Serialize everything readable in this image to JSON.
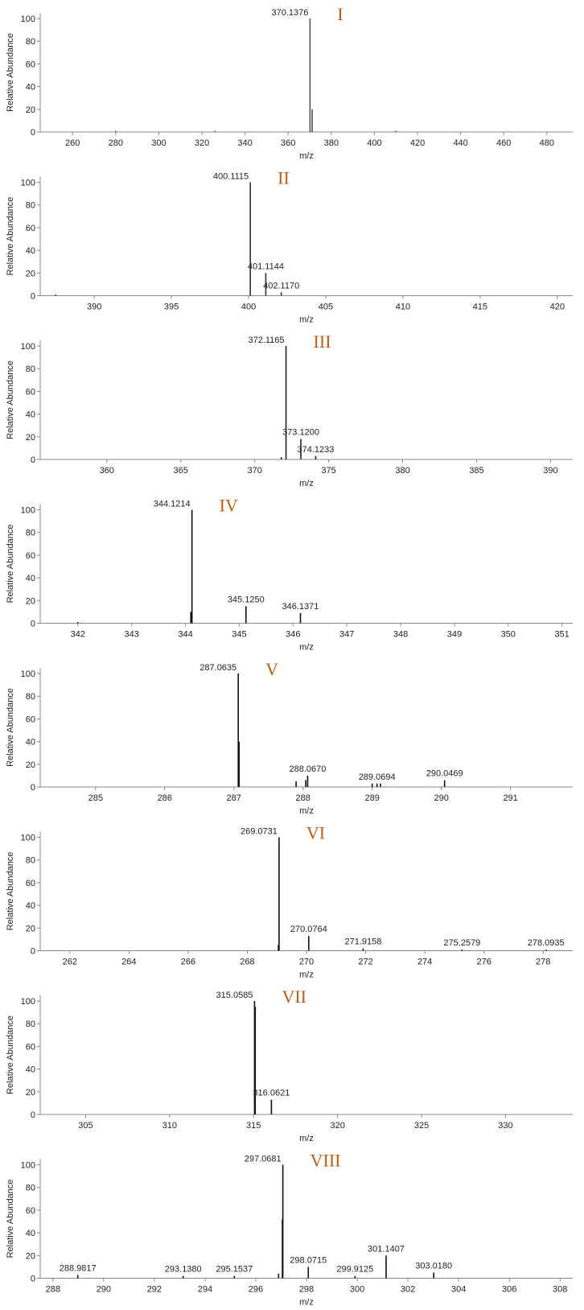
{
  "chart_data": [
    {
      "type": "bar",
      "panel_label": "I",
      "xlabel": "m/z",
      "ylabel": "Relative Abundance",
      "color": "#555555",
      "label_color": "#b8601a",
      "x": [
        370.1376,
        371.14,
        280.0,
        326.0,
        410.0
      ],
      "values": [
        100,
        20,
        1,
        1,
        1
      ],
      "x_labels": [
        "370.1376",
        null,
        null,
        null,
        null
      ],
      "xlim": [
        245,
        492
      ],
      "xticks": [
        260,
        280,
        300,
        320,
        340,
        360,
        380,
        400,
        420,
        440,
        460,
        480
      ],
      "ylim": [
        0,
        105
      ],
      "yticks": [
        0,
        20,
        40,
        60,
        80,
        100
      ]
    },
    {
      "type": "bar",
      "panel_label": "II",
      "xlabel": "m/z",
      "ylabel": "Relative Abundance",
      "color": "#333333",
      "label_color": "#b8601a",
      "x": [
        400.1115,
        401.1144,
        402.117,
        387.5
      ],
      "values": [
        100,
        20,
        3,
        1
      ],
      "x_labels": [
        "400.1115",
        "401.1144",
        "402.1170",
        null
      ],
      "xlim": [
        386.5,
        421
      ],
      "xticks": [
        390,
        395,
        400,
        405,
        410,
        415,
        420
      ],
      "ylim": [
        0,
        105
      ],
      "yticks": [
        0,
        20,
        40,
        60,
        80,
        100
      ]
    },
    {
      "type": "bar",
      "panel_label": "III",
      "xlabel": "m/z",
      "ylabel": "Relative Abundance",
      "color": "#222222",
      "label_color": "#b8601a",
      "x": [
        372.1165,
        373.12,
        374.1233,
        371.8
      ],
      "values": [
        100,
        18,
        3,
        2
      ],
      "x_labels": [
        "372.1165",
        "373.1200",
        "374.1233",
        null
      ],
      "xlim": [
        355.5,
        391.5
      ],
      "xticks": [
        360,
        365,
        370,
        375,
        380,
        385,
        390
      ],
      "ylim": [
        0,
        105
      ],
      "yticks": [
        0,
        20,
        40,
        60,
        80,
        100
      ]
    },
    {
      "type": "bar",
      "panel_label": "IV",
      "xlabel": "m/z",
      "ylabel": "Relative Abundance",
      "color": "#111111",
      "label_color": "#b8601a",
      "x": [
        344.1214,
        344.1,
        345.125,
        346.1371,
        342.0
      ],
      "values": [
        100,
        10,
        15,
        9,
        1
      ],
      "x_labels": [
        "344.1214",
        null,
        "345.1250",
        "346.1371",
        null
      ],
      "xlim": [
        341.3,
        351.2
      ],
      "xticks": [
        342,
        343,
        344,
        345,
        346,
        347,
        348,
        349,
        350,
        351
      ],
      "ylim": [
        0,
        105
      ],
      "yticks": [
        0,
        20,
        40,
        60,
        80,
        100
      ]
    },
    {
      "type": "bar",
      "panel_label": "V",
      "xlabel": "m/z",
      "ylabel": "Relative Abundance",
      "color": "#111111",
      "label_color": "#b8601a",
      "x": [
        287.0635,
        287.075,
        288.067,
        287.9,
        288.04,
        289.0694,
        289.0,
        289.12,
        290.0469
      ],
      "values": [
        100,
        40,
        10,
        5,
        6,
        3,
        3,
        3,
        6
      ],
      "x_labels": [
        "287.0635",
        null,
        "288.0670",
        null,
        null,
        "289.0694",
        null,
        null,
        "290.0469"
      ],
      "xlim": [
        284.2,
        291.9
      ],
      "xticks": [
        285,
        286,
        287,
        288,
        289,
        290,
        291
      ],
      "ylim": [
        0,
        105
      ],
      "yticks": [
        0,
        20,
        40,
        60,
        80,
        100
      ]
    },
    {
      "type": "bar",
      "panel_label": "VI",
      "xlabel": "m/z",
      "ylabel": "Relative Abundance",
      "color": "#111111",
      "label_color": "#b8601a",
      "x": [
        269.0731,
        269.05,
        270.0764,
        271.9158,
        275.2579,
        278.0935
      ],
      "values": [
        100,
        5,
        13,
        2,
        1,
        1
      ],
      "x_labels": [
        "269.0731",
        null,
        "270.0764",
        "271.9158",
        "275.2579",
        "278.0935"
      ],
      "xlim": [
        261,
        279
      ],
      "xticks": [
        262,
        264,
        266,
        268,
        270,
        272,
        274,
        276,
        278
      ],
      "ylim": [
        0,
        105
      ],
      "yticks": [
        0,
        20,
        40,
        60,
        80,
        100
      ]
    },
    {
      "type": "bar",
      "panel_label": "VII",
      "xlabel": "m/z",
      "ylabel": "Relative Abundance",
      "color": "#111111",
      "label_color": "#b8601a",
      "x": [
        315.0585,
        315.1,
        316.0621
      ],
      "values": [
        100,
        95,
        13
      ],
      "x_labels": [
        "315.0585",
        null,
        "316.0621"
      ],
      "xlim": [
        302.3,
        334
      ],
      "xticks": [
        305,
        310,
        315,
        320,
        325,
        330
      ],
      "ylim": [
        0,
        105
      ],
      "yticks": [
        0,
        20,
        40,
        60,
        80,
        100
      ]
    },
    {
      "type": "bar",
      "panel_label": "VIII",
      "xlabel": "m/z",
      "ylabel": "Relative Abundance",
      "color": "#111111",
      "label_color": "#b8601a",
      "x": [
        297.0681,
        297.05,
        301.1407,
        303.018,
        298.0715,
        299.9125,
        288.9817,
        293.138,
        295.1537,
        296.9
      ],
      "values": [
        100,
        52,
        20,
        5,
        10,
        2,
        3,
        2,
        2,
        4
      ],
      "x_labels": [
        "297.0681",
        null,
        "301.1407",
        "303.0180",
        "298.0715",
        "299.9125",
        "288.9817",
        "293.1380",
        "295.1537",
        null
      ],
      "xlim": [
        287.5,
        308.5
      ],
      "xticks": [
        288,
        290,
        292,
        294,
        296,
        298,
        300,
        302,
        304,
        306,
        308
      ],
      "ylim": [
        0,
        105
      ],
      "yticks": [
        0,
        20,
        40,
        60,
        80,
        100
      ]
    }
  ]
}
